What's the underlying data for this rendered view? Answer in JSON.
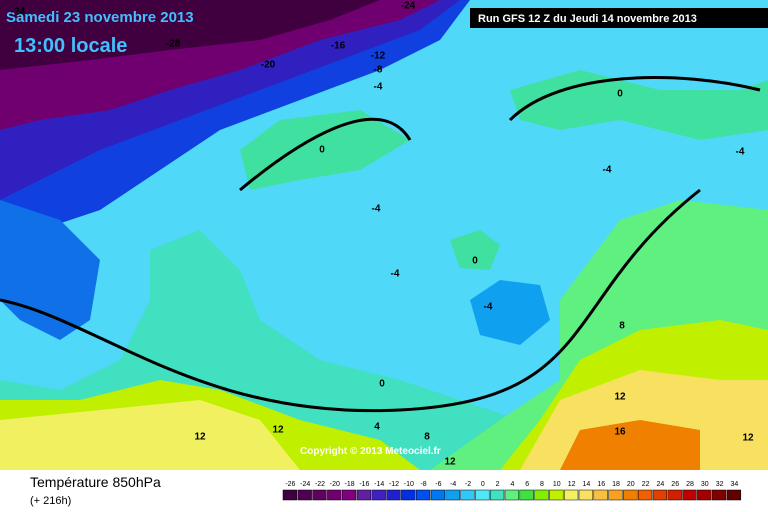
{
  "header": {
    "date": "Samedi 23 novembre 2013",
    "time": "13:00 locale",
    "run": "Run GFS 12 Z du Jeudi 14 novembre 2013"
  },
  "footer": {
    "title": "Température 850hPa",
    "lead": "(+ 216h)",
    "copyright": "Copyright © 2013 Meteociel.fr"
  },
  "contour_labels": [
    "-24",
    "-24",
    "-28",
    "-20",
    "-16",
    "-12",
    "-8",
    "-4",
    "0",
    "0",
    "-4",
    "-4",
    "-4",
    "-4",
    "0",
    "-4",
    "8",
    "0",
    "4",
    "8",
    "12",
    "12",
    "12",
    "16",
    "12",
    "12"
  ],
  "legend": {
    "labels": [
      -26,
      -24,
      -22,
      -20,
      -18,
      -16,
      -14,
      -12,
      -10,
      -8,
      -6,
      -4,
      -2,
      0,
      2,
      4,
      6,
      8,
      10,
      12,
      14,
      16,
      18,
      20,
      22,
      24,
      26,
      28,
      30,
      32,
      34
    ],
    "colors": [
      "#400040",
      "#500050",
      "#600060",
      "#700070",
      "#800080",
      "#6020a0",
      "#4020c0",
      "#2020d0",
      "#0030e0",
      "#0050f0",
      "#0078f0",
      "#10a0f0",
      "#30c8f8",
      "#50e8f8",
      "#40e0c0",
      "#60f080",
      "#40e040",
      "#80f000",
      "#c0f000",
      "#f0f060",
      "#f8e060",
      "#f8c040",
      "#f8a020",
      "#f08000",
      "#f06000",
      "#e04000",
      "#d02000",
      "#c00000",
      "#a00000",
      "#800000",
      "#600000"
    ]
  }
}
